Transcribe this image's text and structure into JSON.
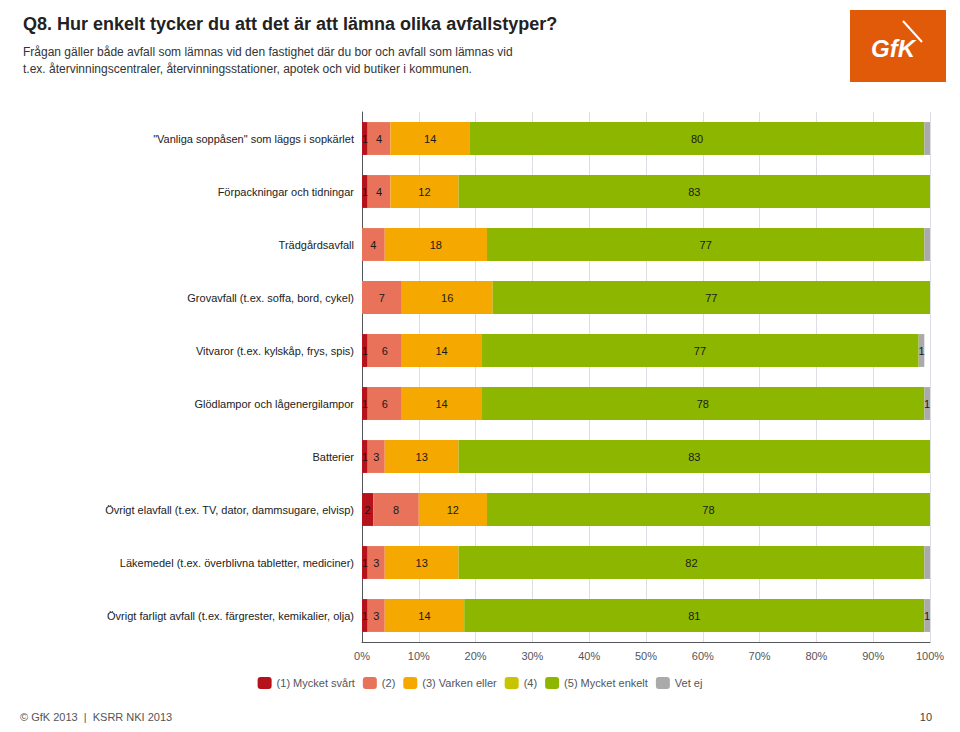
{
  "chart_data": {
    "type": "bar",
    "orientation": "horizontal",
    "stacked": true,
    "title": "Q8. Hur enkelt tycker du att det är att lämna olika avfallstyper?",
    "subtitle": [
      "Frågan gäller både avfall som lämnas vid den fastighet där du bor och avfall som lämnas vid",
      "t.ex. återvinningscentraler, återvinningsstationer, apotek och vid butiker i kommunen."
    ],
    "annotations": [
      "GfK",
      "© GfK 2013  |  KSRR NKI 2013",
      "10"
    ],
    "categories": [
      "\"Vanliga soppåsen\" som läggs i sopkärlet",
      "Förpackningar och tidningar",
      "Trädgårdsavfall",
      "Grovavfall (t.ex. soffa, bord, cykel)",
      "Vitvaror (t.ex. kylskåp, frys, spis)",
      "Glödlampor och lågenergilampor",
      "Batterier",
      "Övrigt elavfall (t.ex. TV, dator, dammsugare, elvisp)",
      "Läkemedel (t.ex. överblivna tabletter, mediciner)",
      "Övrigt farligt avfall (t.ex. färgrester, kemikalier, olja)"
    ],
    "series": [
      {
        "name": "(1) Mycket svårt",
        "color": "#b5121b",
        "values": [
          1,
          1,
          0,
          0,
          1,
          1,
          1,
          2,
          1,
          1
        ],
        "value_labels": [
          "1",
          "1",
          null,
          null,
          "1",
          "1",
          "1",
          "2",
          "1",
          "1"
        ]
      },
      {
        "name": "(2)",
        "color": "#e8735a",
        "values": [
          4,
          4,
          4,
          7,
          6,
          6,
          3,
          8,
          3,
          3
        ],
        "value_labels": [
          "4",
          "4",
          "4",
          "7",
          "6",
          "6",
          "3",
          "8",
          "3",
          "3"
        ]
      },
      {
        "name": "(3) Varken eller",
        "color": "#f5a800",
        "values": [
          14,
          12,
          18,
          16,
          14,
          14,
          13,
          12,
          13,
          14
        ],
        "value_labels": [
          "14",
          "12",
          "18",
          "16",
          "14",
          "14",
          "13",
          "12",
          "13",
          "14"
        ]
      },
      {
        "name": "(4)",
        "color": "#c8c400",
        "values": [
          0,
          0,
          0,
          0,
          0,
          0,
          0,
          0,
          0,
          0
        ],
        "value_labels": [
          null,
          null,
          null,
          null,
          null,
          null,
          null,
          null,
          null,
          null
        ]
      },
      {
        "name": "(5) Mycket enkelt",
        "color": "#8db600",
        "values": [
          80,
          83,
          77,
          77,
          77,
          78,
          83,
          78,
          82,
          81
        ],
        "value_labels": [
          "80",
          "83",
          "77",
          "77",
          "77",
          "78",
          "83",
          "78",
          "82",
          "81"
        ]
      },
      {
        "name": "Vet ej",
        "color": "#aaaaaa",
        "values": [
          1,
          0,
          1,
          0,
          1,
          1,
          0,
          0,
          1,
          1
        ],
        "value_labels": [
          null,
          null,
          null,
          null,
          "1",
          "1",
          null,
          null,
          null,
          "1"
        ]
      }
    ],
    "xlim": [
      0,
      100
    ],
    "xticks": [
      {
        "value": 0,
        "label": "0%"
      },
      {
        "value": 10,
        "label": "10%"
      },
      {
        "value": 20,
        "label": "20%"
      },
      {
        "value": 30,
        "label": "30%"
      },
      {
        "value": 40,
        "label": "40%"
      },
      {
        "value": 50,
        "label": "50%"
      },
      {
        "value": 60,
        "label": "60%"
      },
      {
        "value": 70,
        "label": "70%"
      },
      {
        "value": 80,
        "label": "80%"
      },
      {
        "value": 90,
        "label": "90%"
      },
      {
        "value": 100,
        "label": "100%"
      }
    ],
    "grid": true,
    "legend": "bottom",
    "data_labels": true
  }
}
